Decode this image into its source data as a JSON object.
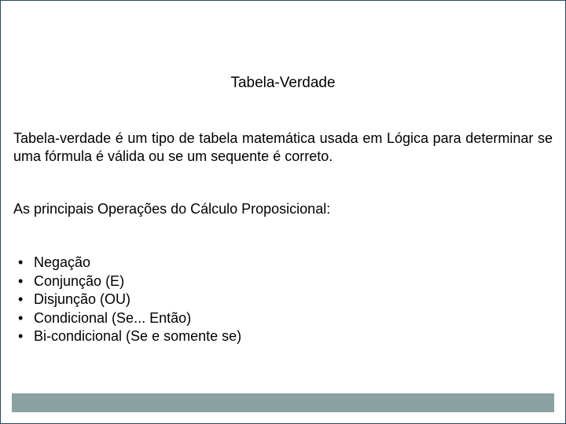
{
  "colors": {
    "border": "#2a4a6a",
    "text": "#000000",
    "bottom_bar": "#8aa2a2",
    "background": "#ffffff"
  },
  "typography": {
    "title_fontsize": 19,
    "body_fontsize": 18,
    "font_family": "Arial"
  },
  "title": "Tabela-Verdade",
  "intro": "Tabela-verdade é um tipo de tabela matemática usada em Lógica para determinar se uma fórmula é válida ou se um sequente é correto.",
  "subheading": "As principais Operações do Cálculo Proposicional:",
  "operations": [
    "Negação",
    "Conjunção (E)",
    "Disjunção (OU)",
    "Condicional (Se... Então)",
    "Bi-condicional (Se e somente se)"
  ],
  "layout": {
    "slide_width": 720,
    "slide_height": 540,
    "bottom_bar_height": 24
  }
}
